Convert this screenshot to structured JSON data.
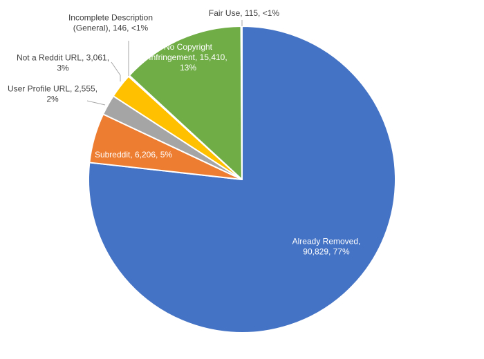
{
  "chart_data": {
    "type": "pie",
    "slices": [
      {
        "name": "Already Removed",
        "value": 90829,
        "pct": "77%",
        "color": "#4472C4",
        "label_lines": [
          "Already Removed,",
          "90,829, 77%"
        ]
      },
      {
        "name": "Subreddit",
        "value": 6206,
        "pct": "5%",
        "color": "#ED7D31",
        "label_lines": [
          "Subreddit, 6,206, 5%"
        ]
      },
      {
        "name": "User Profile URL",
        "value": 2555,
        "pct": "2%",
        "color": "#A5A5A5",
        "label_lines": [
          "User Profile URL, 2,555,",
          "2%"
        ]
      },
      {
        "name": "Not a Reddit URL",
        "value": 3061,
        "pct": "3%",
        "color": "#FFC000",
        "label_lines": [
          "Not a Reddit URL, 3,061,",
          "3%"
        ]
      },
      {
        "name": "Incomplete Description (General)",
        "value": 146,
        "pct": "<1%",
        "color": "#5B9BD5",
        "label_lines": [
          "Incomplete Description",
          "(General), 146, <1%"
        ]
      },
      {
        "name": "No Copyright Infringement",
        "value": 15410,
        "pct": "13%",
        "color": "#70AD47",
        "label_lines": [
          "No Copyright",
          "Infringement, 15,410,",
          "13%"
        ]
      },
      {
        "name": "Fair Use",
        "value": 115,
        "pct": "<1%",
        "color": "#264478",
        "label_lines": [
          "Fair Use, 115, <1%"
        ]
      }
    ],
    "legend": "none"
  }
}
